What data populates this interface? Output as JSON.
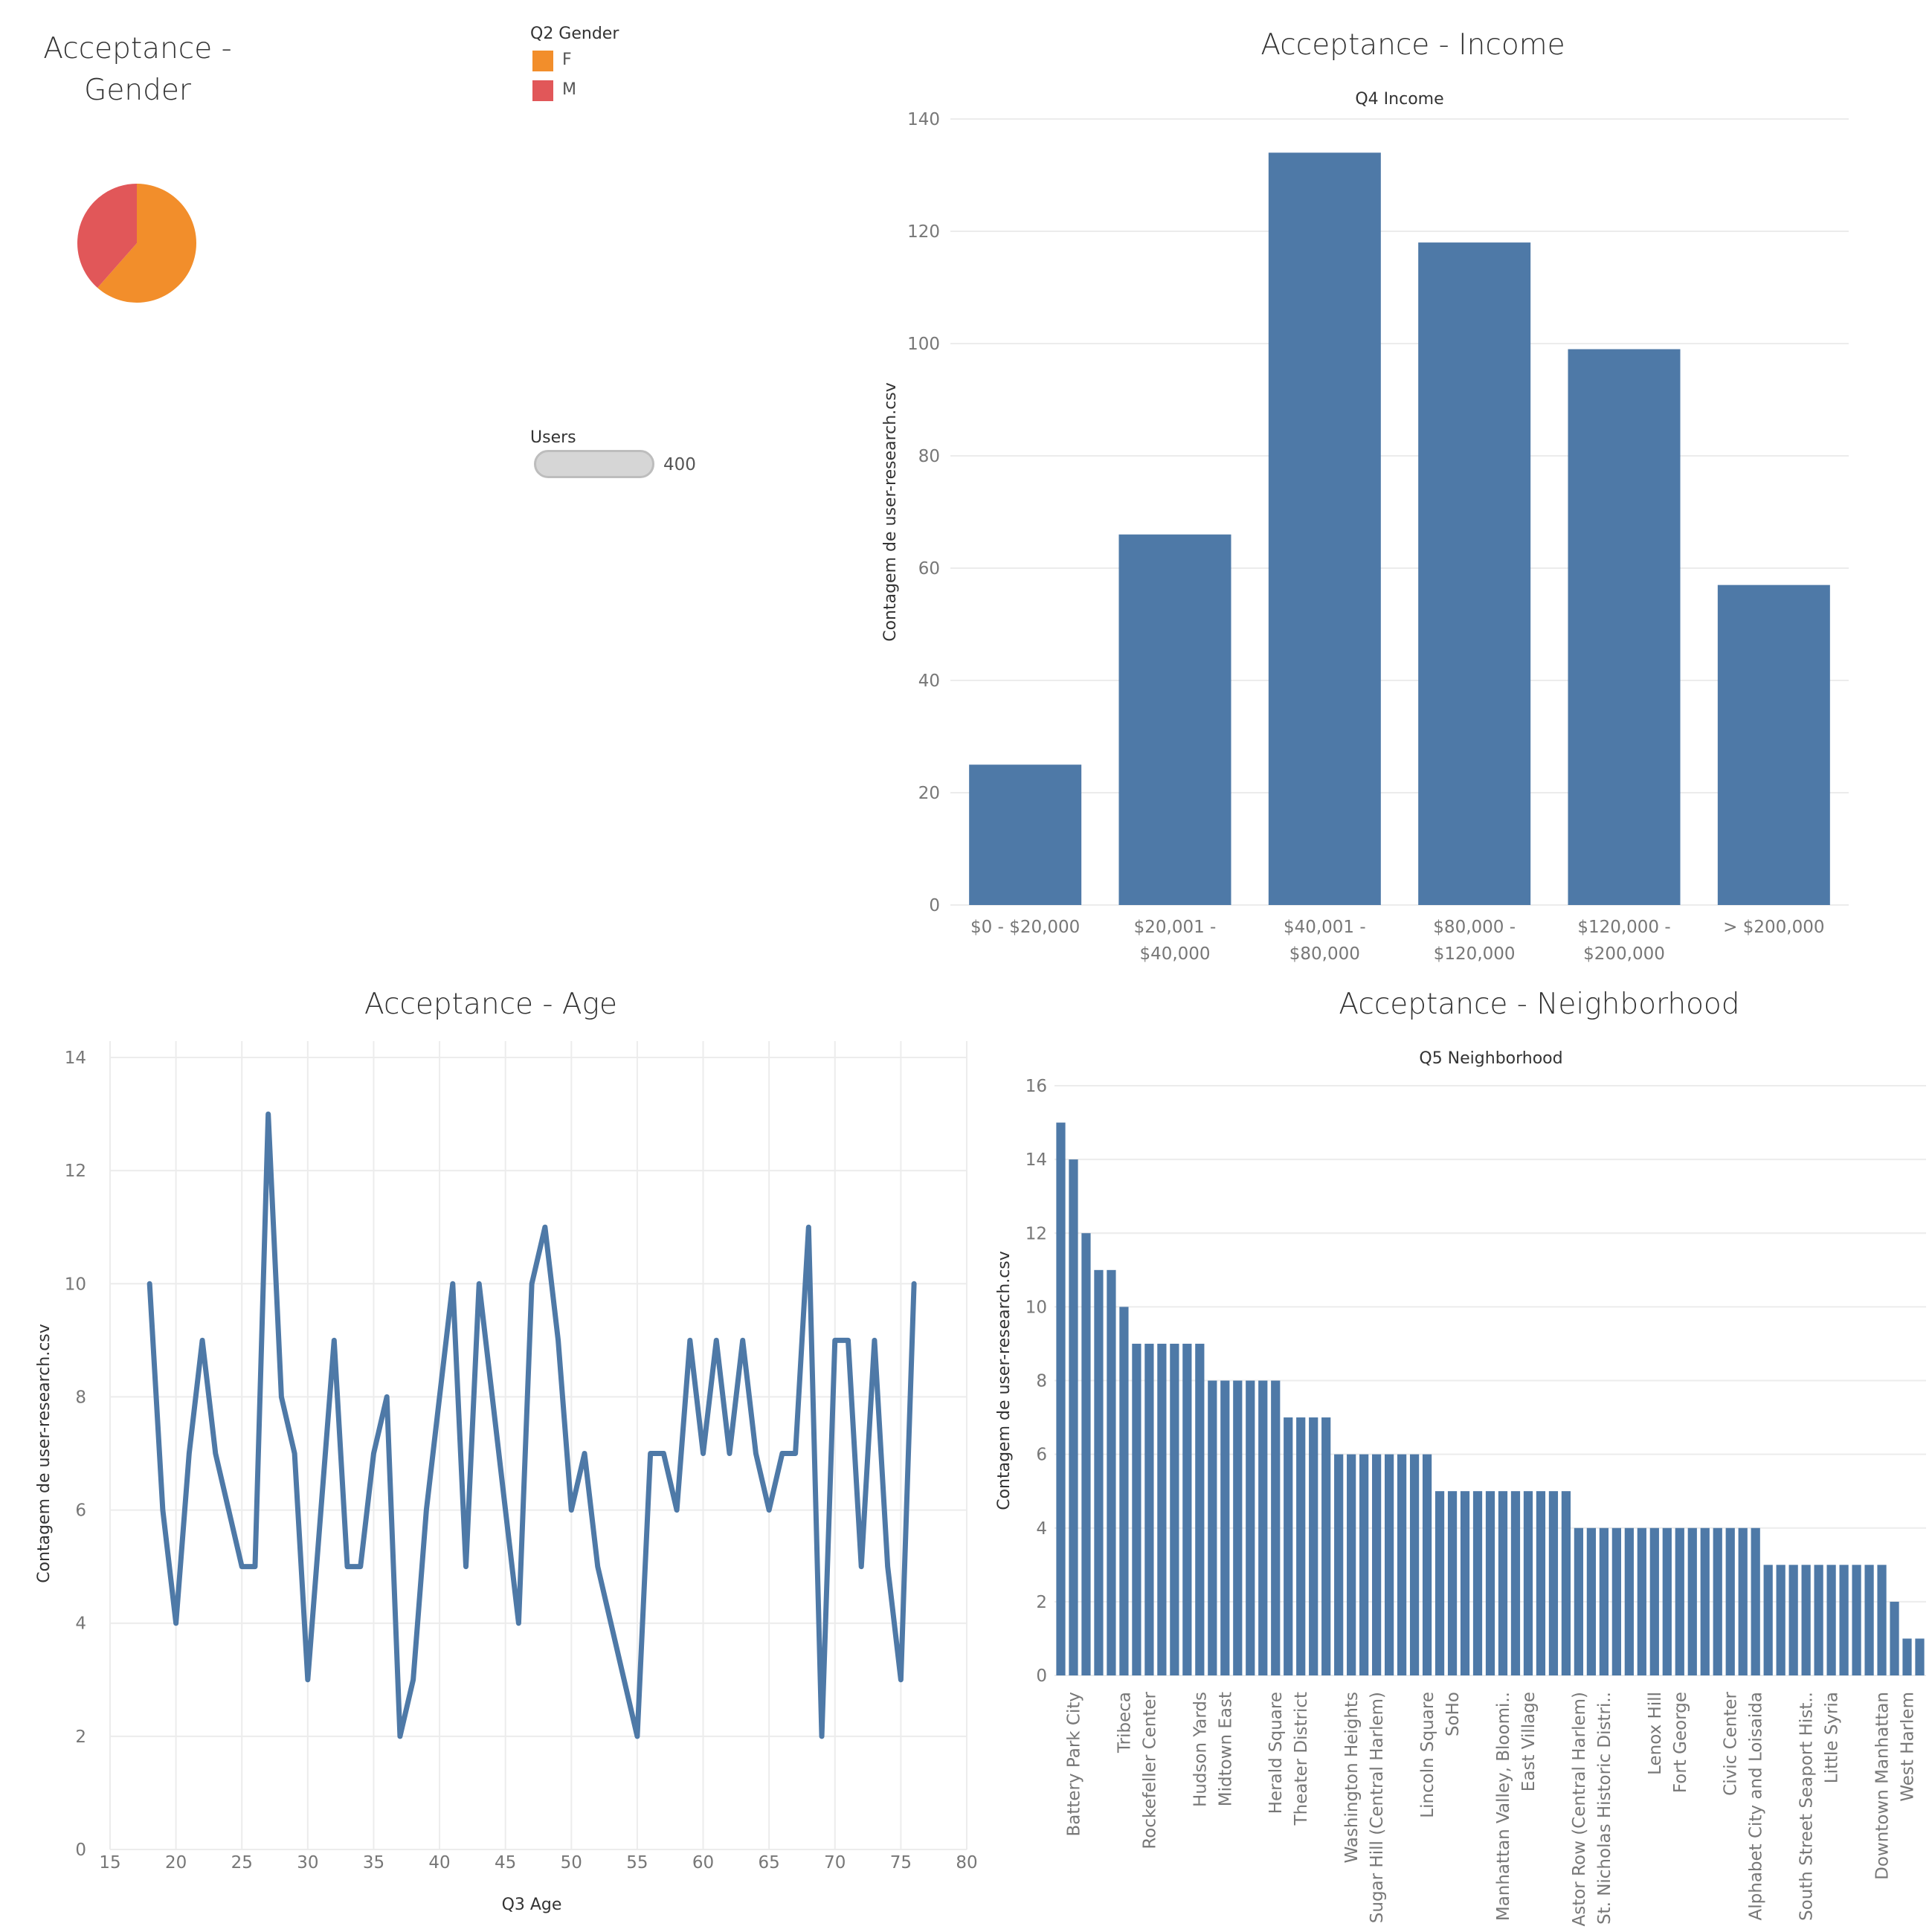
{
  "gender": {
    "title": "Acceptance - Gender",
    "legend_title": "Q2 Gender",
    "legend": [
      {
        "label": "F",
        "color": "#f28e2b"
      },
      {
        "label": "M",
        "color": "#e15759"
      }
    ]
  },
  "users": {
    "label": "Users",
    "value": "400"
  },
  "chart_data": [
    {
      "id": "gender",
      "type": "pie",
      "title": "Acceptance - Gender",
      "categories": [
        "F",
        "M"
      ],
      "values": [
        61.5,
        38.5
      ],
      "colors": [
        "#f28e2b",
        "#e15759"
      ]
    },
    {
      "id": "income",
      "type": "bar",
      "title": "Acceptance - Income",
      "subtitle": "Q4 Income",
      "xlabel": "",
      "ylabel": "Contagem de user-research.csv",
      "categories": [
        [
          "$0 - $20,000"
        ],
        [
          "$20,001 -",
          "$40,000"
        ],
        [
          "$40,001 -",
          "$80,000"
        ],
        [
          "$80,000 -",
          "$120,000"
        ],
        [
          "$120,000 -",
          "$200,000"
        ],
        [
          "> $200,000"
        ]
      ],
      "values": [
        25,
        66,
        134,
        118,
        99,
        57
      ],
      "ylim": [
        0,
        140
      ],
      "yticks": [
        0,
        20,
        40,
        60,
        80,
        100,
        120,
        140
      ],
      "color": "#4e79a7",
      "grid": true
    },
    {
      "id": "age",
      "type": "line",
      "title": "Acceptance - Age",
      "xlabel": "Q3 Age",
      "ylabel": "Contagem de user-research.csv",
      "x": [
        18,
        19,
        20,
        21,
        22,
        23,
        24,
        25,
        26,
        27,
        28,
        29,
        30,
        31,
        32,
        33,
        34,
        35,
        36,
        37,
        38,
        39,
        40,
        41,
        42,
        43,
        44,
        45,
        46,
        47,
        48,
        49,
        50,
        51,
        52,
        53,
        54,
        55,
        56,
        57,
        58,
        59,
        60,
        61,
        62,
        63,
        64,
        65,
        66,
        67,
        68,
        69,
        70,
        71,
        72,
        73,
        74,
        75,
        76
      ],
      "values": [
        10,
        6,
        4,
        7,
        9,
        7,
        6,
        5,
        5,
        13,
        8,
        7,
        3,
        6,
        9,
        5,
        5,
        7,
        8,
        2,
        3,
        6,
        8,
        10,
        5,
        10,
        8,
        6,
        4,
        10,
        11,
        9,
        6,
        7,
        5,
        4,
        3,
        2,
        7,
        7,
        6,
        9,
        7,
        9,
        7,
        9,
        7,
        6,
        7,
        7,
        11,
        2,
        9,
        9,
        5,
        9,
        5,
        3,
        10
      ],
      "xlim": [
        15,
        80
      ],
      "xticks": [
        15,
        20,
        25,
        30,
        35,
        40,
        45,
        50,
        55,
        60,
        65,
        70,
        75,
        80
      ],
      "ylim": [
        0,
        14
      ],
      "yticks": [
        0,
        2,
        4,
        6,
        8,
        10,
        12,
        14
      ],
      "color": "#4e79a7",
      "grid": true
    },
    {
      "id": "neighborhood",
      "type": "bar",
      "title": "Acceptance - Neighborhood",
      "subtitle": "Q5 Neighborhood",
      "xlabel": "",
      "ylabel": "Contagem de user-research.csv",
      "values": [
        15,
        14,
        12,
        11,
        11,
        10,
        9,
        9,
        9,
        9,
        9,
        9,
        8,
        8,
        8,
        8,
        8,
        8,
        7,
        7,
        7,
        7,
        6,
        6,
        6,
        6,
        6,
        6,
        6,
        6,
        5,
        5,
        5,
        5,
        5,
        5,
        5,
        5,
        5,
        5,
        5,
        4,
        4,
        4,
        4,
        4,
        4,
        4,
        4,
        4,
        4,
        4,
        4,
        4,
        4,
        4,
        3,
        3,
        3,
        3,
        3,
        3,
        3,
        3,
        3,
        3,
        2,
        1,
        1
      ],
      "tick_labels": [
        {
          "index": 1,
          "label": "Battery Park City"
        },
        {
          "index": 5,
          "label": "Tribeca"
        },
        {
          "index": 7,
          "label": "Rockefeller Center"
        },
        {
          "index": 11,
          "label": "Hudson Yards"
        },
        {
          "index": 13,
          "label": "Midtown East"
        },
        {
          "index": 17,
          "label": "Herald Square"
        },
        {
          "index": 19,
          "label": "Theater District"
        },
        {
          "index": 23,
          "label": "Washington Heights"
        },
        {
          "index": 25,
          "label": "Sugar Hill (Central Harlem)"
        },
        {
          "index": 29,
          "label": "Lincoln Square"
        },
        {
          "index": 31,
          "label": "SoHo"
        },
        {
          "index": 35,
          "label": "Manhattan Valley, Bloomi.."
        },
        {
          "index": 37,
          "label": "East Village"
        },
        {
          "index": 41,
          "label": "Astor Row (Central Harlem)"
        },
        {
          "index": 43,
          "label": "St. Nicholas Historic Distri.."
        },
        {
          "index": 47,
          "label": "Lenox Hill"
        },
        {
          "index": 49,
          "label": "Fort George"
        },
        {
          "index": 53,
          "label": "Civic Center"
        },
        {
          "index": 55,
          "label": "Alphabet City and Loisaida"
        },
        {
          "index": 59,
          "label": "South Street Seaport Hist.."
        },
        {
          "index": 61,
          "label": "Little Syria"
        },
        {
          "index": 65,
          "label": "Downtown Manhattan"
        },
        {
          "index": 67,
          "label": "West Harlem"
        }
      ],
      "ylim": [
        0,
        16
      ],
      "yticks": [
        0,
        2,
        4,
        6,
        8,
        10,
        12,
        14,
        16
      ],
      "color": "#4e79a7",
      "grid": true
    }
  ]
}
